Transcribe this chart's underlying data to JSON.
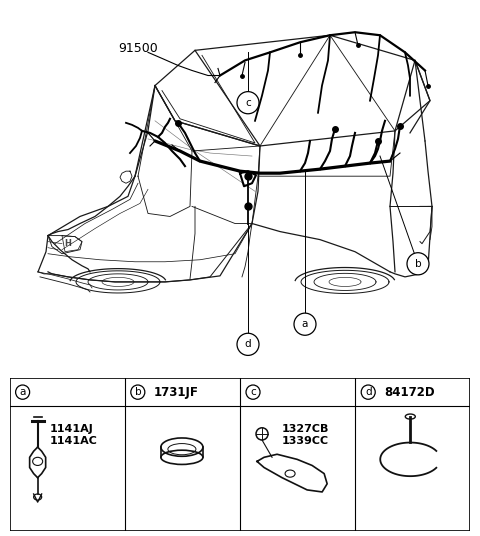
{
  "bg_color": "#ffffff",
  "car_label": "91500",
  "label_a": "a",
  "label_b": "b",
  "label_c": "c",
  "label_d": "d",
  "part_a_codes": [
    "1141AJ",
    "1141AC"
  ],
  "part_b_code": "1731JF",
  "part_c_codes": [
    "1327CB",
    "1339CC"
  ],
  "part_d_code": "84172D",
  "fig_width": 4.8,
  "fig_height": 5.36,
  "dpi": 100,
  "line_color": "#1a1a1a",
  "wiring_color": "#000000"
}
